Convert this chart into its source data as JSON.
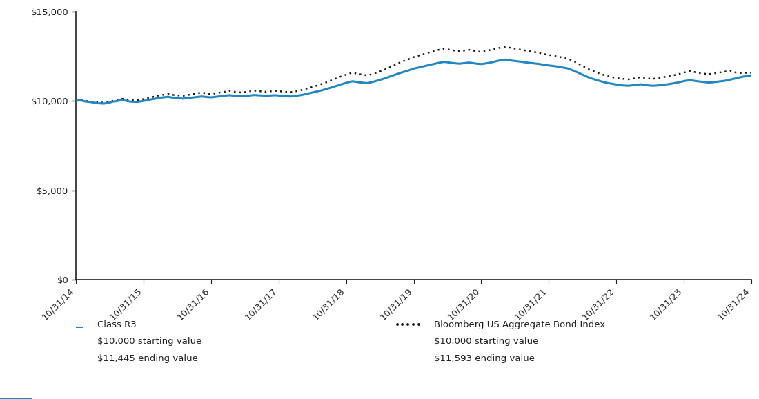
{
  "class_r3_label": "Class R3",
  "class_r3_start": "$10,000 starting value",
  "class_r3_end": "$11,445 ending value",
  "bloomberg_label": "Bloomberg US Aggregate Bond Index",
  "bloomberg_start": "$10,000 starting value",
  "bloomberg_end": "$11,593 ending value",
  "line_color": "#2388c2",
  "dot_color": "#1a1a1a",
  "ylim": [
    0,
    15000
  ],
  "yticks": [
    0,
    5000,
    10000,
    15000
  ],
  "xtick_labels": [
    "10/31/14",
    "10/31/15",
    "10/31/16",
    "10/31/17",
    "10/31/18",
    "10/31/19",
    "10/31/20",
    "10/31/21",
    "10/31/22",
    "10/31/23",
    "10/31/24"
  ],
  "class_r3_values": [
    10000,
    10050,
    10020,
    9980,
    9960,
    9940,
    9910,
    9880,
    9870,
    9860,
    9880,
    9920,
    9970,
    9990,
    10020,
    10060,
    10030,
    9990,
    9970,
    9960,
    9950,
    9980,
    10010,
    10040,
    10080,
    10110,
    10140,
    10180,
    10200,
    10220,
    10240,
    10210,
    10180,
    10160,
    10150,
    10140,
    10160,
    10180,
    10200,
    10220,
    10240,
    10260,
    10240,
    10220,
    10210,
    10230,
    10250,
    10270,
    10290,
    10310,
    10330,
    10310,
    10290,
    10280,
    10270,
    10280,
    10300,
    10320,
    10340,
    10330,
    10320,
    10310,
    10300,
    10310,
    10320,
    10330,
    10310,
    10290,
    10280,
    10270,
    10260,
    10280,
    10300,
    10330,
    10360,
    10400,
    10440,
    10480,
    10520,
    10560,
    10600,
    10650,
    10700,
    10750,
    10810,
    10860,
    10920,
    10970,
    11020,
    11070,
    11110,
    11090,
    11060,
    11040,
    11020,
    11010,
    11050,
    11090,
    11140,
    11190,
    11240,
    11300,
    11360,
    11420,
    11480,
    11540,
    11600,
    11650,
    11700,
    11760,
    11820,
    11860,
    11900,
    11940,
    11980,
    12020,
    12060,
    12100,
    12140,
    12180,
    12200,
    12180,
    12150,
    12130,
    12110,
    12100,
    12120,
    12140,
    12160,
    12140,
    12110,
    12090,
    12080,
    12100,
    12130,
    12160,
    12200,
    12240,
    12280,
    12310,
    12330,
    12300,
    12270,
    12250,
    12230,
    12210,
    12180,
    12160,
    12140,
    12120,
    12100,
    12080,
    12050,
    12020,
    12000,
    11980,
    11960,
    11930,
    11900,
    11870,
    11840,
    11780,
    11710,
    11640,
    11560,
    11480,
    11400,
    11330,
    11270,
    11210,
    11160,
    11110,
    11060,
    11020,
    10990,
    10960,
    10930,
    10900,
    10880,
    10870,
    10860,
    10880,
    10900,
    10920,
    10940,
    10920,
    10890,
    10870,
    10860,
    10870,
    10890,
    10910,
    10930,
    10950,
    10980,
    11010,
    11040,
    11080,
    11120,
    11150,
    11170,
    11150,
    11120,
    11100,
    11080,
    11060,
    11040,
    11050,
    11070,
    11090,
    11110,
    11130,
    11160,
    11200,
    11240,
    11280,
    11320,
    11360,
    11390,
    11420,
    11445
  ],
  "bloomberg_values": [
    10000,
    10060,
    10040,
    10010,
    9990,
    9970,
    9950,
    9930,
    9920,
    9910,
    9930,
    9970,
    10010,
    10050,
    10090,
    10130,
    10110,
    10080,
    10060,
    10050,
    10040,
    10070,
    10110,
    10150,
    10190,
    10230,
    10270,
    10310,
    10340,
    10370,
    10400,
    10370,
    10340,
    10320,
    10310,
    10300,
    10330,
    10360,
    10390,
    10420,
    10450,
    10480,
    10450,
    10420,
    10400,
    10420,
    10450,
    10480,
    10510,
    10540,
    10570,
    10540,
    10510,
    10490,
    10480,
    10500,
    10530,
    10560,
    10590,
    10570,
    10550,
    10540,
    10520,
    10540,
    10560,
    10580,
    10560,
    10540,
    10520,
    10510,
    10500,
    10530,
    10560,
    10600,
    10640,
    10690,
    10740,
    10790,
    10840,
    10900,
    10960,
    11020,
    11080,
    11150,
    11220,
    11290,
    11360,
    11420,
    11480,
    11540,
    11600,
    11560,
    11520,
    11490,
    11460,
    11450,
    11490,
    11540,
    11600,
    11660,
    11720,
    11800,
    11880,
    11960,
    12040,
    12120,
    12200,
    12260,
    12320,
    12400,
    12470,
    12520,
    12570,
    12620,
    12670,
    12720,
    12770,
    12820,
    12870,
    12910,
    12940,
    12910,
    12870,
    12840,
    12810,
    12790,
    12820,
    12850,
    12880,
    12850,
    12810,
    12780,
    12760,
    12790,
    12830,
    12870,
    12910,
    12950,
    12990,
    13020,
    13050,
    13010,
    12970,
    12940,
    12910,
    12880,
    12850,
    12820,
    12790,
    12760,
    12730,
    12700,
    12660,
    12620,
    12590,
    12560,
    12530,
    12490,
    12460,
    12420,
    12390,
    12320,
    12240,
    12160,
    12060,
    11970,
    11880,
    11790,
    11720,
    11650,
    11580,
    11520,
    11460,
    11410,
    11370,
    11330,
    11300,
    11270,
    11250,
    11230,
    11220,
    11250,
    11280,
    11310,
    11340,
    11310,
    11280,
    11260,
    11250,
    11270,
    11300,
    11330,
    11360,
    11390,
    11420,
    11460,
    11500,
    11550,
    11600,
    11640,
    11680,
    11650,
    11610,
    11580,
    11550,
    11530,
    11510,
    11530,
    11560,
    11590,
    11610,
    11640,
    11670,
    11700,
    11640,
    11600,
    11580,
    11570,
    11580,
    11590,
    11593
  ]
}
